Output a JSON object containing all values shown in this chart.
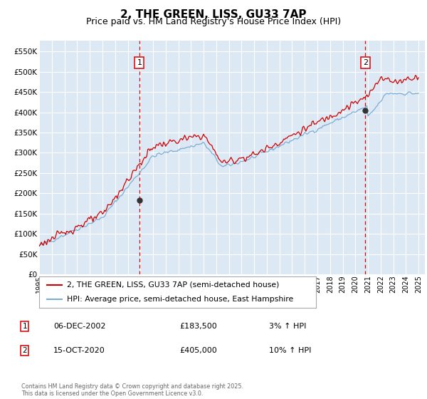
{
  "title": "2, THE GREEN, LISS, GU33 7AP",
  "subtitle": "Price paid vs. HM Land Registry's House Price Index (HPI)",
  "legend_line1": "2, THE GREEN, LISS, GU33 7AP (semi-detached house)",
  "legend_line2": "HPI: Average price, semi-detached house, East Hampshire",
  "footer": "Contains HM Land Registry data © Crown copyright and database right 2025.\nThis data is licensed under the Open Government Licence v3.0.",
  "annotation1_date": "06-DEC-2002",
  "annotation1_price": "£183,500",
  "annotation1_hpi": "3% ↑ HPI",
  "annotation2_date": "15-OCT-2020",
  "annotation2_price": "£405,000",
  "annotation2_hpi": "10% ↑ HPI",
  "xlim_start": 1995.0,
  "xlim_end": 2025.5,
  "ylim_min": 0,
  "ylim_max": 577000,
  "yticks": [
    0,
    50000,
    100000,
    150000,
    200000,
    250000,
    300000,
    350000,
    400000,
    450000,
    500000,
    550000
  ],
  "vline1_x": 2002.917,
  "vline2_x": 2020.792,
  "sale1_x": 2002.917,
  "sale1_y": 183500,
  "sale2_x": 2020.792,
  "sale2_y": 405000,
  "plot_bg_color": "#dce9f5",
  "red_color": "#cc0000",
  "blue_color": "#7badd4",
  "grid_color": "#ffffff",
  "title_fontsize": 11,
  "subtitle_fontsize": 9
}
